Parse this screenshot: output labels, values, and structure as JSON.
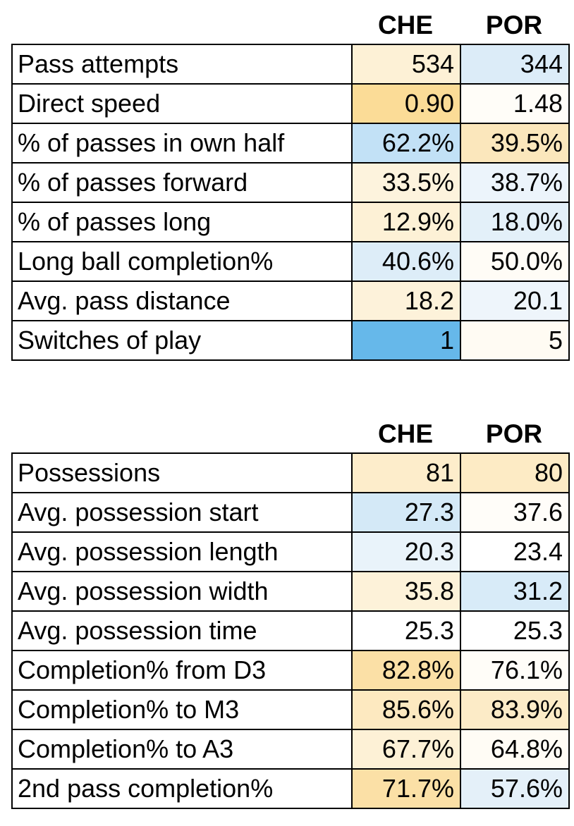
{
  "chart_data": [
    {
      "type": "table",
      "columns": [
        "CHE",
        "POR"
      ],
      "rows": [
        {
          "label": "Pass attempts",
          "values": [
            "534",
            "344"
          ],
          "colors": [
            "#fdf1d6",
            "#dcecf8"
          ]
        },
        {
          "label": "Direct speed",
          "values": [
            "0.90",
            "1.48"
          ],
          "colors": [
            "#fbdc97",
            "#fffdf8"
          ]
        },
        {
          "label": "% of passes in own half",
          "values": [
            "62.2%",
            "39.5%"
          ],
          "colors": [
            "#c2e1f6",
            "#fbe7bc"
          ]
        },
        {
          "label": "% of passes forward",
          "values": [
            "33.5%",
            "38.7%"
          ],
          "colors": [
            "#fdf3dd",
            "#ecf4fb"
          ]
        },
        {
          "label": "% of passes long",
          "values": [
            "12.9%",
            "18.0%"
          ],
          "colors": [
            "#fdf1d6",
            "#e3f0f9"
          ]
        },
        {
          "label": "Long ball completion%",
          "values": [
            "40.6%",
            "50.0%"
          ],
          "colors": [
            "#ddedf8",
            "#fffcf6"
          ]
        },
        {
          "label": "Avg. pass distance",
          "values": [
            "18.2",
            "20.1"
          ],
          "colors": [
            "#fdf2da",
            "#eef5fb"
          ]
        },
        {
          "label": "Switches of play",
          "values": [
            "1",
            "5"
          ],
          "colors": [
            "#66b8ea",
            "#fffbf3"
          ]
        }
      ]
    },
    {
      "type": "table",
      "columns": [
        "CHE",
        "POR"
      ],
      "rows": [
        {
          "label": "Possessions",
          "values": [
            "81",
            "80"
          ],
          "colors": [
            "#fdedcb",
            "#fdebc5"
          ]
        },
        {
          "label": "Avg. possession start",
          "values": [
            "27.3",
            "37.6"
          ],
          "colors": [
            "#d4e9f7",
            "#fffdf9"
          ]
        },
        {
          "label": "Avg. possession length",
          "values": [
            "20.3",
            "23.4"
          ],
          "colors": [
            "#e9f3fa",
            "#ffffff"
          ]
        },
        {
          "label": "Avg. possession width",
          "values": [
            "35.8",
            "31.2"
          ],
          "colors": [
            "#fdf2d9",
            "#d8ebf8"
          ]
        },
        {
          "label": "Avg. possession time",
          "values": [
            "25.3",
            "25.3"
          ],
          "colors": [
            "#ffffff",
            "#ffffff"
          ]
        },
        {
          "label": "Completion% from D3",
          "values": [
            "82.8%",
            "76.1%"
          ],
          "colors": [
            "#fbe0a6",
            "#fffdf8"
          ]
        },
        {
          "label": "Completion% to M3",
          "values": [
            "85.6%",
            "83.9%"
          ],
          "colors": [
            "#fde9c0",
            "#fcebc7"
          ]
        },
        {
          "label": "Completion% to A3",
          "values": [
            "67.7%",
            "64.8%"
          ],
          "colors": [
            "#fdf1d6",
            "#fffcf5"
          ]
        },
        {
          "label": "2nd pass completion%",
          "values": [
            "71.7%",
            "57.6%"
          ],
          "colors": [
            "#fbe0a6",
            "#e4f0f9"
          ]
        }
      ]
    }
  ]
}
